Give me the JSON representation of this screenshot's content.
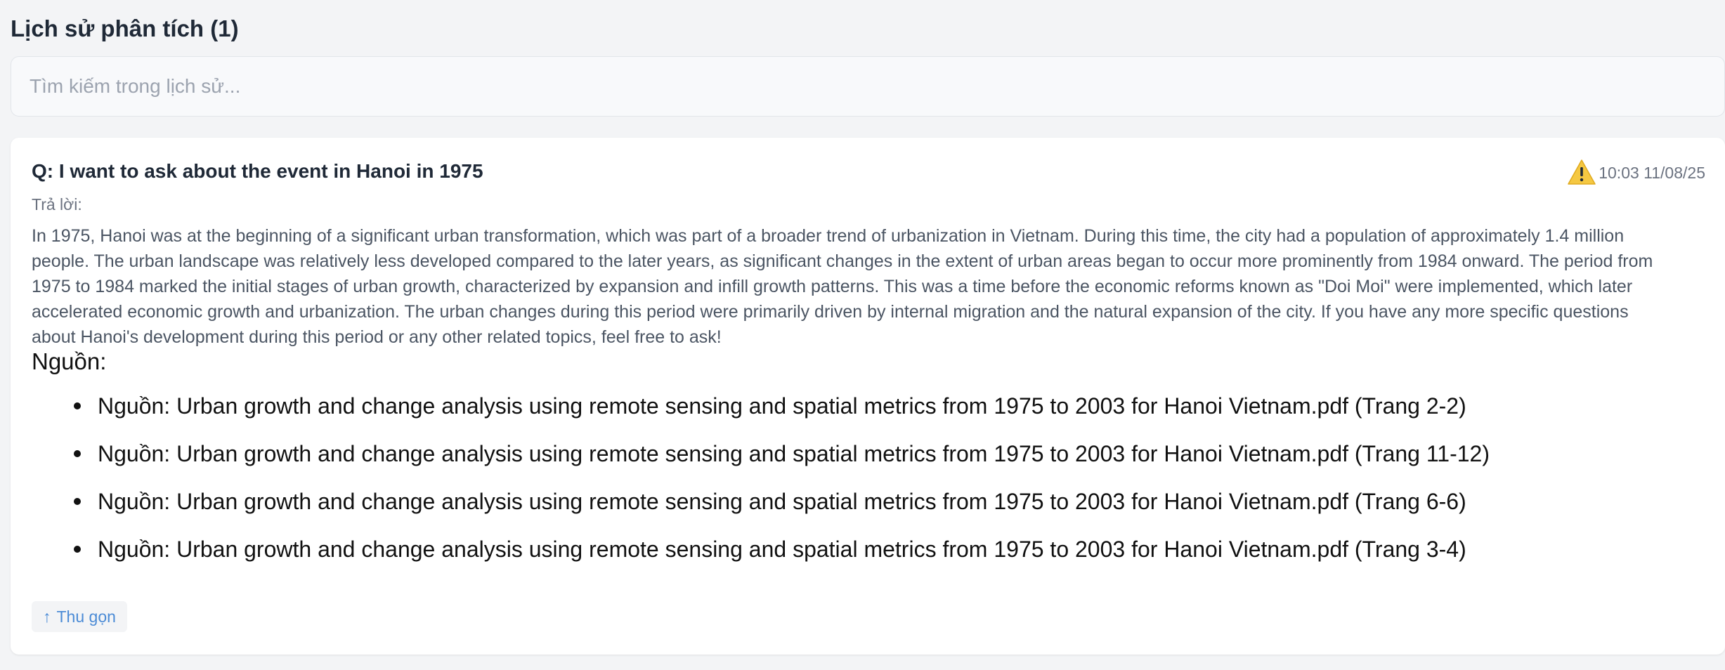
{
  "history": {
    "title": "Lịch sử phân tích (1)",
    "search_placeholder": "Tìm kiếm trong lịch sử..."
  },
  "entry": {
    "question": "Q: I want to ask about the event in Hanoi in 1975",
    "timestamp": "10:03 11/08/25",
    "warning_icon": "warning-triangle-icon",
    "answer_label": "Trả lời:",
    "answer": "In 1975, Hanoi was at the beginning of a significant urban transformation, which was part of a broader trend of urbanization in Vietnam. During this time, the city had a population of approximately 1.4 million people. The urban landscape was relatively less developed compared to the later years, as significant changes in the extent of urban areas began to occur more prominently from 1984 onward. The period from 1975 to 1984 marked the initial stages of urban growth, characterized by expansion and infill growth patterns. This was a time before the economic reforms known as \"Doi Moi\" were implemented, which later accelerated economic growth and urbanization. The urban changes during this period were primarily driven by internal migration and the natural expansion of the city. If you have any more specific questions about Hanoi's development during this period or any other related topics, feel free to ask!",
    "sources_heading": "Nguồn:",
    "sources": [
      "Nguồn: Urban growth and change analysis using remote sensing and spatial metrics from 1975 to 2003 for Hanoi Vietnam.pdf (Trang 2-2)",
      "Nguồn: Urban growth and change analysis using remote sensing and spatial metrics from 1975 to 2003 for Hanoi Vietnam.pdf (Trang 11-12)",
      "Nguồn: Urban growth and change analysis using remote sensing and spatial metrics from 1975 to 2003 for Hanoi Vietnam.pdf (Trang 6-6)",
      "Nguồn: Urban growth and change analysis using remote sensing and spatial metrics from 1975 to 2003 for Hanoi Vietnam.pdf (Trang 3-4)"
    ],
    "collapse_arrow": "↑",
    "collapse_label": "Thu gọn"
  },
  "colors": {
    "accent": "#4b8bd6",
    "warning": "#f5c842",
    "background": "#f3f4f6"
  }
}
